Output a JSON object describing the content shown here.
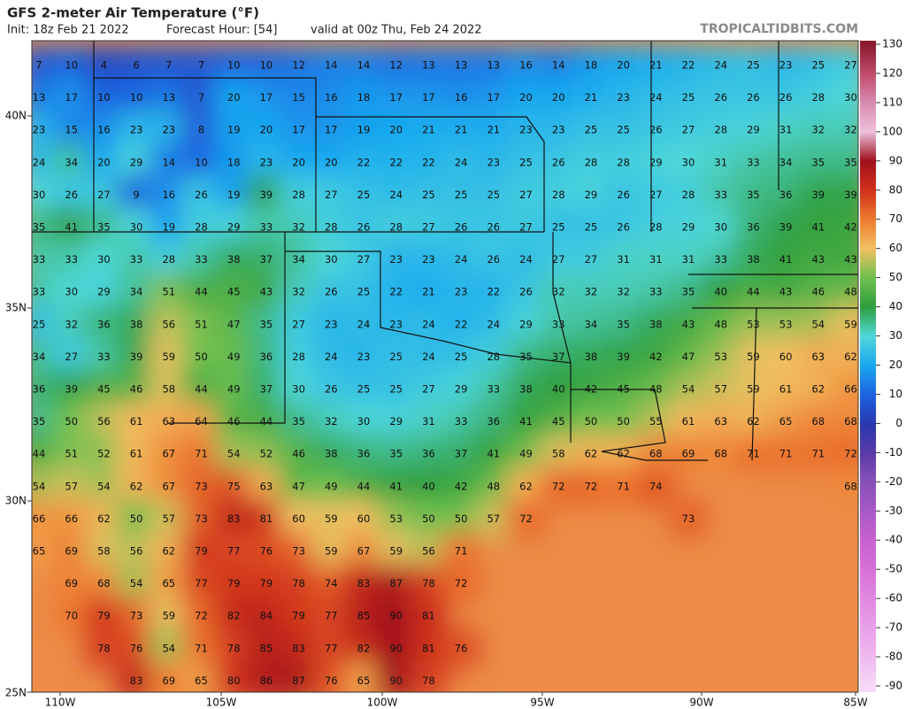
{
  "header": {
    "title": "GFS 2-meter Air Temperature (°F)",
    "init": "Init: 18z Feb 21 2022",
    "forecast_hour": "Forecast Hour: [54]",
    "valid": "valid at 00z Thu, Feb 24 2022",
    "watermark": "TROPICALTIDBITS.COM"
  },
  "map": {
    "lat_labels": [
      "40N",
      "35N",
      "30N",
      "25N"
    ],
    "lon_labels": [
      "110W",
      "105W",
      "100W",
      "95W",
      "90W",
      "85W"
    ],
    "rows": [
      [
        7,
        10,
        4,
        6,
        7,
        7,
        10,
        10,
        12,
        14,
        14,
        12,
        13,
        13,
        13,
        16,
        14,
        18,
        20,
        21,
        22,
        24,
        25,
        23,
        25,
        27
      ],
      [
        13,
        17,
        10,
        10,
        13,
        7,
        20,
        17,
        15,
        16,
        18,
        17,
        17,
        16,
        17,
        20,
        20,
        21,
        23,
        24,
        25,
        26,
        26,
        26,
        28,
        30
      ],
      [
        23,
        15,
        16,
        23,
        23,
        8,
        19,
        20,
        17,
        17,
        19,
        20,
        21,
        21,
        21,
        23,
        23,
        25,
        25,
        26,
        27,
        28,
        29,
        31,
        32,
        32
      ],
      [
        24,
        34,
        20,
        29,
        14,
        10,
        18,
        23,
        20,
        20,
        22,
        22,
        22,
        24,
        23,
        25,
        26,
        28,
        28,
        29,
        30,
        31,
        33,
        34,
        35,
        35
      ],
      [
        30,
        26,
        27,
        9,
        16,
        26,
        19,
        39,
        28,
        27,
        25,
        24,
        25,
        25,
        25,
        27,
        28,
        29,
        26,
        27,
        28,
        33,
        35,
        36,
        39,
        39
      ],
      [
        35,
        41,
        35,
        30,
        19,
        28,
        29,
        33,
        32,
        28,
        26,
        28,
        27,
        26,
        26,
        27,
        25,
        25,
        26,
        28,
        29,
        30,
        36,
        39,
        41,
        42
      ],
      [
        33,
        33,
        30,
        33,
        28,
        33,
        38,
        37,
        34,
        30,
        27,
        23,
        23,
        24,
        26,
        24,
        27,
        27,
        31,
        31,
        31,
        33,
        38,
        41,
        43,
        43
      ],
      [
        33,
        30,
        29,
        34,
        51,
        44,
        45,
        43,
        32,
        26,
        25,
        22,
        21,
        23,
        22,
        26,
        32,
        32,
        32,
        33,
        35,
        40,
        44,
        43,
        46,
        48
      ],
      [
        25,
        32,
        36,
        38,
        56,
        51,
        47,
        35,
        27,
        23,
        24,
        23,
        24,
        22,
        24,
        29,
        33,
        34,
        35,
        38,
        43,
        48,
        53,
        53,
        54,
        59
      ],
      [
        34,
        27,
        33,
        39,
        59,
        50,
        49,
        36,
        28,
        24,
        23,
        25,
        24,
        25,
        28,
        35,
        37,
        38,
        39,
        42,
        47,
        53,
        59,
        60,
        63,
        62
      ],
      [
        36,
        39,
        45,
        46,
        58,
        44,
        49,
        37,
        30,
        26,
        25,
        25,
        27,
        29,
        33,
        38,
        40,
        42,
        45,
        48,
        54,
        57,
        59,
        61,
        62,
        66
      ],
      [
        35,
        50,
        56,
        61,
        63,
        64,
        46,
        44,
        35,
        32,
        30,
        29,
        31,
        33,
        36,
        41,
        45,
        50,
        50,
        55,
        61,
        63,
        62,
        65,
        68,
        68
      ],
      [
        44,
        51,
        52,
        61,
        67,
        71,
        54,
        52,
        46,
        38,
        36,
        35,
        36,
        37,
        41,
        49,
        58,
        62,
        62,
        68,
        69,
        68,
        71,
        71,
        71,
        72
      ],
      [
        54,
        57,
        54,
        62,
        67,
        73,
        75,
        63,
        47,
        49,
        44,
        41,
        40,
        42,
        48,
        62,
        72,
        72,
        71,
        74,
        null,
        null,
        null,
        null,
        null,
        68
      ],
      [
        66,
        66,
        62,
        50,
        57,
        73,
        83,
        81,
        60,
        59,
        60,
        53,
        50,
        50,
        57,
        72,
        null,
        null,
        null,
        null,
        73
      ],
      [
        65,
        69,
        58,
        56,
        62,
        79,
        77,
        76,
        73,
        59,
        67,
        59,
        56,
        71
      ],
      [
        null,
        69,
        68,
        54,
        65,
        77,
        79,
        79,
        78,
        74,
        83,
        87,
        78,
        72
      ],
      [
        null,
        70,
        79,
        73,
        59,
        72,
        82,
        84,
        79,
        77,
        85,
        90,
        81
      ],
      [
        null,
        null,
        78,
        76,
        54,
        71,
        78,
        85,
        83,
        77,
        82,
        90,
        81,
        76
      ],
      [
        null,
        null,
        null,
        83,
        69,
        65,
        80,
        86,
        87,
        76,
        65,
        90,
        78
      ]
    ]
  },
  "colorbar": {
    "ticks": [
      130,
      120,
      110,
      100,
      90,
      80,
      70,
      60,
      50,
      40,
      30,
      20,
      10,
      0,
      -10,
      -20,
      -30,
      -40,
      -50,
      -60,
      -70,
      -80,
      -90
    ],
    "colors": [
      "#8b1a2e",
      "#c04a6a",
      "#d88ab0",
      "#ecc0dc",
      "#a0101c",
      "#d0301c",
      "#ee7a30",
      "#f2c060",
      "#70c050",
      "#2e9e3c",
      "#50d8d8",
      "#18a8f0",
      "#1e64e0",
      "#2838b0",
      "#5a3aa8",
      "#8850b8",
      "#a858c8",
      "#c860d0",
      "#d870d8",
      "#e088e0",
      "#e8a0e8",
      "#f0b8f0",
      "#f6d8f6"
    ]
  }
}
